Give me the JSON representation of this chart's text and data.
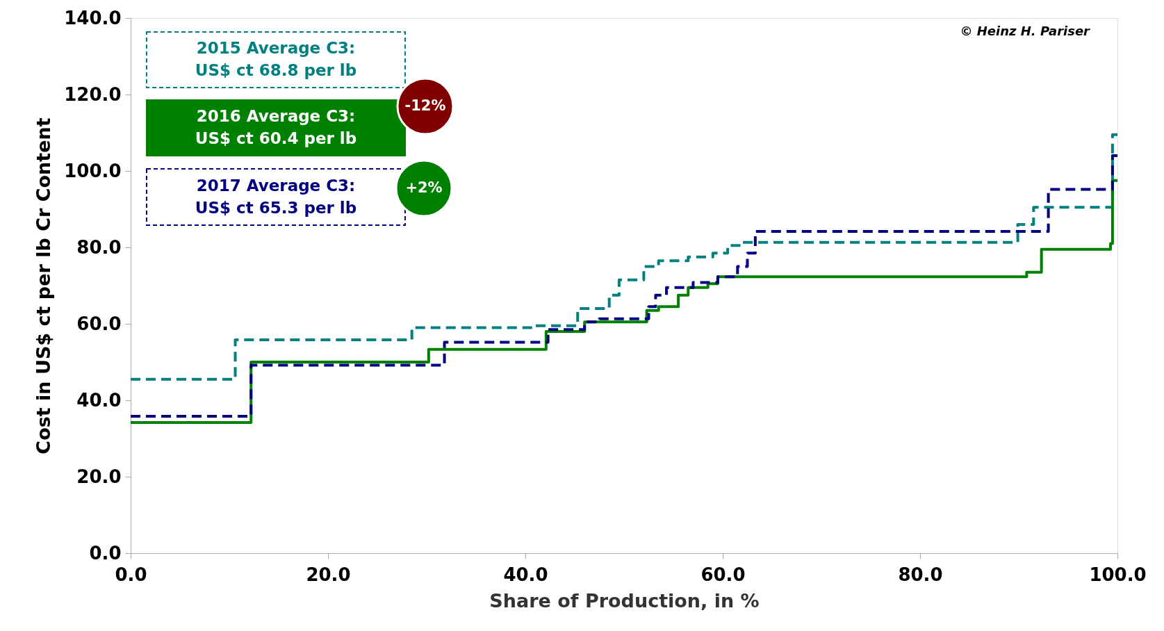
{
  "chart_data": {
    "type": "step",
    "xlabel": "Share of Production, in %",
    "ylabel": "Cost in US$ ct per lb Cr Content",
    "xlim": [
      0,
      100
    ],
    "ylim": [
      0,
      140
    ],
    "xticks": [
      {
        "value": 0,
        "label": "0.0"
      },
      {
        "value": 20,
        "label": "20.0"
      },
      {
        "value": 40,
        "label": "40.0"
      },
      {
        "value": 60,
        "label": "60.0"
      },
      {
        "value": 80,
        "label": "80.0"
      },
      {
        "value": 100,
        "label": "100.0"
      }
    ],
    "yticks": [
      {
        "value": 0,
        "label": "0.0"
      },
      {
        "value": 20,
        "label": "20.0"
      },
      {
        "value": 40,
        "label": "40.0"
      },
      {
        "value": 60,
        "label": "60.0"
      },
      {
        "value": 80,
        "label": "80.0"
      },
      {
        "value": 100,
        "label": "100.0"
      },
      {
        "value": 120,
        "label": "120.0"
      },
      {
        "value": 140,
        "label": "140.0"
      }
    ],
    "grid": false,
    "series": [
      {
        "color": "#008080",
        "line_style": "dashed",
        "x": [
          0,
          10.6,
          28.5,
          41,
          45.3,
          48.5,
          49.5,
          52,
          53.5,
          56.5,
          59,
          60.5,
          62,
          89.9,
          91.5,
          99.5,
          100
        ],
        "values": [
          45.5,
          55.8,
          59,
          59.5,
          64,
          67.5,
          71.5,
          75,
          76.5,
          77.5,
          78.5,
          80.5,
          81.3,
          86,
          90.5,
          109.5,
          109.5
        ]
      },
      {
        "color": "#008000",
        "line_style": "solid",
        "x": [
          0,
          12.2,
          30.2,
          42.1,
          46,
          52.3,
          53.5,
          55.5,
          56.5,
          58.5,
          59.5,
          90.8,
          92.3,
          99.3,
          99.5,
          100
        ],
        "values": [
          34.2,
          50,
          53.3,
          58,
          60.5,
          63.5,
          64.5,
          67.5,
          69.5,
          70.5,
          72.3,
          73.5,
          79.5,
          81,
          97.5,
          97.5
        ]
      },
      {
        "color": "#000080",
        "line_style": "dashed",
        "x": [
          0,
          12.2,
          31.8,
          42.3,
          46,
          47.5,
          52.5,
          53.2,
          54.3,
          57,
          59.5,
          61.5,
          62.5,
          63.3,
          93,
          99.5,
          100
        ],
        "values": [
          35.8,
          49.2,
          55.2,
          58.5,
          60.5,
          61.3,
          64.5,
          67.5,
          69.5,
          70.8,
          72.3,
          75,
          78.5,
          84.2,
          95.2,
          104,
          104
        ]
      }
    ],
    "annotations": [
      "2015 Average C3:\nUS$ ct 68.8 per lb",
      "2016 Average C3:\nUS$ ct 60.4 per lb",
      "2017 Average C3:\nUS$ ct 65.3 per lb",
      "-12%",
      "+2%",
      "© Heinz H. Pariser"
    ]
  }
}
